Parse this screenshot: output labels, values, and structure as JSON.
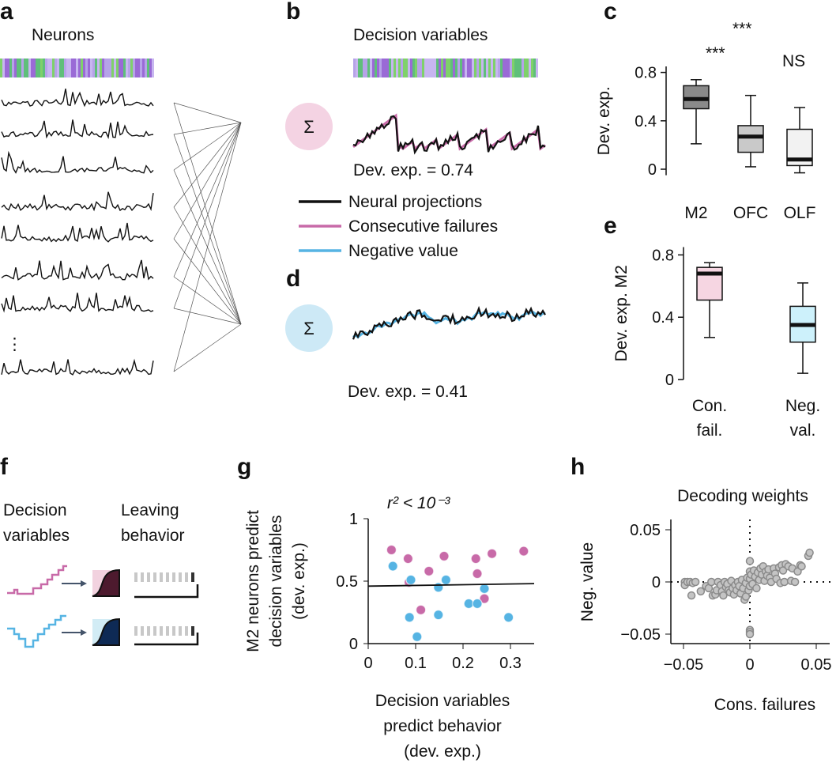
{
  "panels": {
    "a": {
      "label": "a",
      "title": "Neurons",
      "ellipsis": "⋮"
    },
    "b": {
      "label": "b",
      "title": "Decision variables",
      "sum_symbol": "Σ",
      "dev_exp": "Dev. exp. = 0.74",
      "legend": [
        {
          "label": "Neural projections",
          "color": "#111111"
        },
        {
          "label": "Consecutive failures",
          "color": "#c86aa8"
        },
        {
          "label": "Negative value",
          "color": "#56b4e3"
        }
      ]
    },
    "d": {
      "label": "d",
      "sum_symbol": "Σ",
      "dev_exp": "Dev. exp. = 0.41"
    },
    "c": {
      "label": "c",
      "sig": [
        "***",
        "***",
        "NS"
      ]
    },
    "e": {
      "label": "e"
    },
    "f": {
      "label": "f",
      "col1": [
        "Decision",
        "variables"
      ],
      "col2": [
        "Leaving",
        "behavior"
      ],
      "colors": {
        "pink": "#c86aa8",
        "blue": "#56b4e3",
        "dark_pink": "#4d1a2e",
        "dark_blue": "#0e2a55"
      }
    },
    "g": {
      "label": "g",
      "annotation": "r² < 10⁻³"
    },
    "h": {
      "label": "h"
    }
  },
  "chart_data": [
    {
      "panel": "c",
      "type": "box",
      "ylabel": "Dev. exp.",
      "ylim": [
        -0.05,
        0.85
      ],
      "yticks": [
        "0",
        "0.4",
        "0.8"
      ],
      "categories": [
        "M2",
        "OFC",
        "OLF"
      ],
      "boxes": [
        {
          "min": 0.21,
          "q1": 0.5,
          "median": 0.58,
          "q3": 0.69,
          "max": 0.74,
          "color": "#8a8a8a"
        },
        {
          "min": 0.02,
          "q1": 0.14,
          "median": 0.27,
          "q3": 0.36,
          "max": 0.61,
          "color": "#c9c9c9"
        },
        {
          "min": -0.03,
          "q1": 0.03,
          "median": 0.08,
          "q3": 0.33,
          "max": 0.51,
          "color": "#f2f2f2"
        }
      ]
    },
    {
      "panel": "e",
      "type": "box",
      "ylabel": "Dev. exp. M2",
      "ylim": [
        0,
        0.85
      ],
      "yticks": [
        "0",
        "0.4",
        "0.8"
      ],
      "categories": [
        [
          "Con.",
          "fail."
        ],
        [
          "Neg.",
          "val."
        ]
      ],
      "boxes": [
        {
          "min": 0.27,
          "q1": 0.51,
          "median": 0.68,
          "q3": 0.72,
          "max": 0.75,
          "color": "#f6d6e2"
        },
        {
          "min": 0.04,
          "q1": 0.24,
          "median": 0.35,
          "q3": 0.47,
          "max": 0.62,
          "color": "#cdf1fb"
        }
      ]
    },
    {
      "panel": "g",
      "type": "scatter",
      "ylabel": [
        "M2 neurons predict",
        "decision variables",
        "(dev. exp.)"
      ],
      "xlabel": [
        "Decision variables",
        "predict behavior",
        "(dev. exp.)"
      ],
      "xlim": [
        0,
        0.35
      ],
      "ylim": [
        0,
        1
      ],
      "xticks": [
        "0",
        "0.1",
        "0.2",
        "0.3"
      ],
      "yticks": [
        "0",
        "0.5",
        "1"
      ],
      "series": [
        {
          "color": "#c86aa8",
          "points": [
            [
              0.049,
              0.75
            ],
            [
              0.084,
              0.68
            ],
            [
              0.16,
              0.7
            ],
            [
              0.128,
              0.58
            ],
            [
              0.227,
              0.68
            ],
            [
              0.23,
              0.56
            ],
            [
              0.261,
              0.72
            ],
            [
              0.328,
              0.74
            ],
            [
              0.245,
              0.36
            ],
            [
              0.111,
              0.27
            ],
            [
              0.086,
              0.49
            ]
          ]
        },
        {
          "color": "#56b4e3",
          "points": [
            [
              0.052,
              0.62
            ],
            [
              0.09,
              0.51
            ],
            [
              0.164,
              0.51
            ],
            [
              0.148,
              0.45
            ],
            [
              0.245,
              0.44
            ],
            [
              0.212,
              0.32
            ],
            [
              0.23,
              0.32
            ],
            [
              0.087,
              0.21
            ],
            [
              0.148,
              0.23
            ],
            [
              0.296,
              0.21
            ],
            [
              0.103,
              0.055
            ]
          ]
        }
      ],
      "fit": [
        [
          0,
          0.46
        ],
        [
          0.35,
          0.48
        ]
      ]
    },
    {
      "panel": "h",
      "type": "scatter",
      "title": "Decoding weights",
      "ylabel": "Neg. value",
      "xlabel": "Cons. failures",
      "xlim": [
        -0.06,
        0.06
      ],
      "ylim": [
        -0.06,
        0.06
      ],
      "xticks": [
        "-0.05",
        "0",
        "0.05"
      ],
      "yticks": [
        "-0.05",
        "0",
        "0.05"
      ],
      "color": "#a8a8a8",
      "points": [
        [
          -0.049,
          0
        ],
        [
          -0.049,
          -0.003
        ],
        [
          -0.047,
          0
        ],
        [
          -0.045,
          0
        ],
        [
          -0.043,
          -0.001
        ],
        [
          -0.041,
          0
        ],
        [
          -0.044,
          -0.013
        ],
        [
          -0.037,
          -0.009
        ],
        [
          -0.033,
          -0.004
        ],
        [
          -0.031,
          -0.006
        ],
        [
          -0.029,
          0
        ],
        [
          -0.028,
          -0.013
        ],
        [
          -0.026,
          -0.012
        ],
        [
          -0.025,
          -0.008
        ],
        [
          -0.024,
          0
        ],
        [
          -0.022,
          -0.003
        ],
        [
          -0.021,
          -0.009
        ],
        [
          -0.02,
          -0.013
        ],
        [
          -0.019,
          0
        ],
        [
          -0.018,
          -0.005
        ],
        [
          -0.017,
          -0.002
        ],
        [
          -0.016,
          -0.008
        ],
        [
          -0.015,
          -0.01
        ],
        [
          -0.014,
          0.001
        ],
        [
          -0.013,
          -0.006
        ],
        [
          -0.012,
          -0.012
        ],
        [
          -0.011,
          -0.003
        ],
        [
          -0.01,
          -0.008
        ],
        [
          -0.009,
          0
        ],
        [
          -0.008,
          -0.004
        ],
        [
          -0.007,
          -0.011
        ],
        [
          -0.006,
          0.002
        ],
        [
          -0.005,
          -0.006
        ],
        [
          -0.004,
          -0.017
        ],
        [
          -0.003,
          -0.014
        ],
        [
          -0.003,
          -0.001
        ],
        [
          -0.002,
          0.004
        ],
        [
          -0.001,
          -0.008
        ],
        [
          0,
          0.02
        ],
        [
          0,
          0.01
        ],
        [
          0,
          0.003
        ],
        [
          0,
          -0.004
        ],
        [
          0,
          -0.046
        ],
        [
          0,
          -0.048
        ],
        [
          0,
          -0.05
        ],
        [
          0.001,
          0.007
        ],
        [
          0.002,
          -0.002
        ],
        [
          0.003,
          0.011
        ],
        [
          0.004,
          0.005
        ],
        [
          0.005,
          -0.006
        ],
        [
          0.006,
          0.009
        ],
        [
          0.007,
          0.002
        ],
        [
          0.008,
          0.013
        ],
        [
          0.009,
          0.007
        ],
        [
          0.01,
          0.015
        ],
        [
          0.011,
          0.001
        ],
        [
          0.012,
          0.01
        ],
        [
          0.013,
          0.006
        ],
        [
          0.014,
          0.012
        ],
        [
          0.015,
          0.004
        ],
        [
          0.016,
          0
        ],
        [
          0.018,
          0.013
        ],
        [
          0.019,
          0.008
        ],
        [
          0.02,
          0.003
        ],
        [
          0.022,
          0.014
        ],
        [
          0.023,
          -0.001
        ],
        [
          0.024,
          0.016
        ],
        [
          0.025,
          0.011
        ],
        [
          0.026,
          0
        ],
        [
          0.027,
          0.017
        ],
        [
          0.029,
          0.015
        ],
        [
          0.031,
          0.001
        ],
        [
          0.032,
          0.013
        ],
        [
          0.034,
          0
        ],
        [
          0.036,
          0.01
        ],
        [
          0.038,
          0.016
        ],
        [
          0.039,
          0.015
        ],
        [
          0.044,
          0.025
        ],
        [
          0.045,
          0.028
        ]
      ]
    }
  ]
}
